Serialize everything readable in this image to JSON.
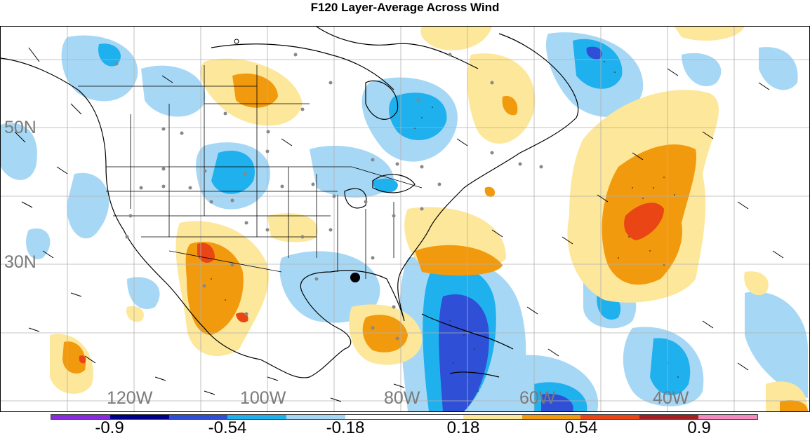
{
  "title": "F120 Layer-Average Across Wind",
  "lat_labels": [
    "50N",
    "30N"
  ],
  "lon_labels": [
    "120W",
    "100W",
    "80W",
    "60W",
    "40W"
  ],
  "colorbar": {
    "colors": [
      "#8a2be2",
      "#00008b",
      "#2e4fd6",
      "#1fb0ee",
      "#a6d8f6",
      "#ffffff",
      "#ffffff",
      "#fde79a",
      "#f29a0e",
      "#ea4515",
      "#a52020",
      "#f58ac0"
    ],
    "labels": [
      "-0.9",
      "-0.54",
      "-0.18",
      "0.18",
      "0.54",
      "0.9"
    ]
  },
  "markers": {
    "center_point_color": "#000000",
    "station_dot_color": "#888888"
  }
}
